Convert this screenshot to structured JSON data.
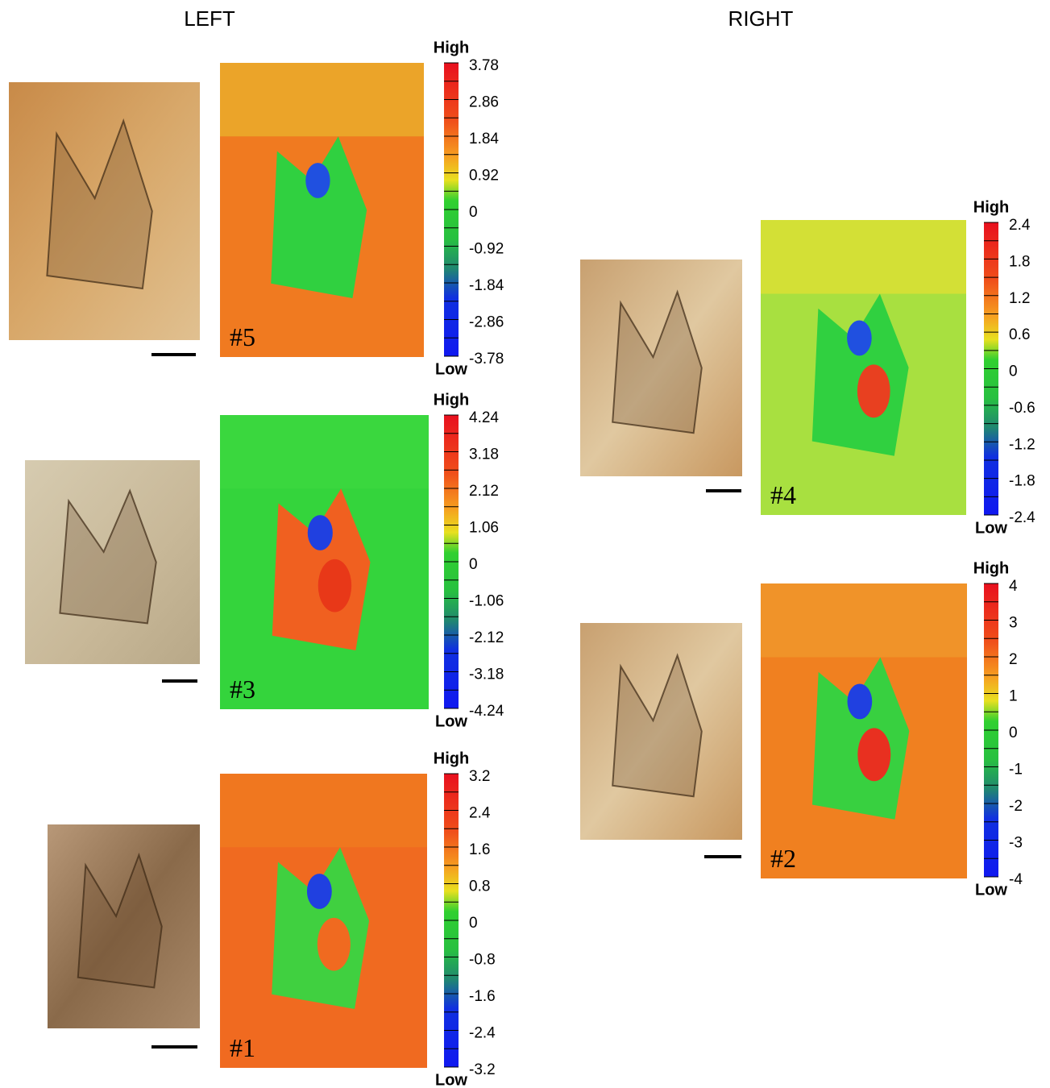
{
  "headers": {
    "left": "LEFT",
    "right": "RIGHT"
  },
  "panels": [
    {
      "label": "#5",
      "high": "High",
      "low": "Low",
      "ticks": [
        "3.78",
        "2.86",
        "1.84",
        "0.92",
        "0",
        "-0.92",
        "-1.84",
        "-2.86",
        "-3.78"
      ]
    },
    {
      "label": "#3",
      "high": "High",
      "low": "Low",
      "ticks": [
        "4.24",
        "3.18",
        "2.12",
        "1.06",
        "0",
        "-1.06",
        "-2.12",
        "-3.18",
        "-4.24"
      ]
    },
    {
      "label": "#1",
      "high": "High",
      "low": "Low",
      "ticks": [
        "3.2",
        "2.4",
        "1.6",
        "0.8",
        "0",
        "-0.8",
        "-1.6",
        "-2.4",
        "-3.2"
      ]
    },
    {
      "label": "#4",
      "high": "High",
      "low": "Low",
      "ticks": [
        "2.4",
        "1.8",
        "1.2",
        "0.6",
        "0",
        "-0.6",
        "-1.2",
        "-1.8",
        "-2.4"
      ]
    },
    {
      "label": "#2",
      "high": "High",
      "low": "Low",
      "ticks": [
        "4",
        "3",
        "2",
        "1",
        "0",
        "-1",
        "-2",
        "-3",
        "-4"
      ]
    }
  ]
}
